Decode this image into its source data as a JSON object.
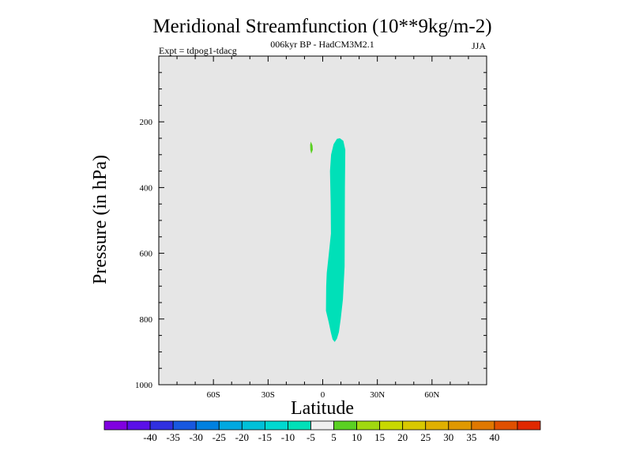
{
  "chart_data": {
    "type": "contour",
    "title": "Meridional Streamfunction (10**9kg/m-2)",
    "subtitle_left": "Expt = tdpog1-tdacg",
    "subtitle_center": "006kyr BP - HadCM3M2.1",
    "subtitle_right": "JJA",
    "xlabel": "Latitude",
    "ylabel": "Pressure (in hPa)",
    "xlim": [
      -90,
      90
    ],
    "ylim": [
      1000,
      0
    ],
    "x_ticks": [
      {
        "value": -60,
        "label": "60S"
      },
      {
        "value": -30,
        "label": "30S"
      },
      {
        "value": 0,
        "label": "0"
      },
      {
        "value": 30,
        "label": "30N"
      },
      {
        "value": 60,
        "label": "60N"
      }
    ],
    "y_ticks": [
      {
        "value": 200,
        "label": "200"
      },
      {
        "value": 400,
        "label": "400"
      },
      {
        "value": 600,
        "label": "600"
      },
      {
        "value": 800,
        "label": "800"
      },
      {
        "value": 1000,
        "label": "1000"
      }
    ],
    "background_color": "#e6e6e6",
    "regions": [
      {
        "name": "negative-cell",
        "color": "#00e0b8",
        "range": "-10 to -5",
        "outline": [
          [
            9.4,
            250
          ],
          [
            11.3,
            258
          ],
          [
            12.4,
            285
          ],
          [
            12.2,
            400
          ],
          [
            12.1,
            520
          ],
          [
            12.0,
            640
          ],
          [
            11.1,
            740
          ],
          [
            9.9,
            800
          ],
          [
            8.9,
            840
          ],
          [
            7.8,
            860
          ],
          [
            6.6,
            870
          ],
          [
            5.4,
            862
          ],
          [
            4.5,
            842
          ],
          [
            3.3,
            810
          ],
          [
            1.8,
            775
          ],
          [
            1.9,
            700
          ],
          [
            2.2,
            660
          ],
          [
            3.4,
            600
          ],
          [
            4.5,
            540
          ],
          [
            4.4,
            450
          ],
          [
            4.0,
            350
          ],
          [
            4.6,
            300
          ],
          [
            6.0,
            268
          ],
          [
            7.8,
            252
          ]
        ]
      },
      {
        "name": "positive-cell",
        "color": "#5ad022",
        "range": "5 to 10",
        "outline": [
          [
            -6.5,
            260
          ],
          [
            -5.6,
            272
          ],
          [
            -5.4,
            285
          ],
          [
            -6.3,
            297
          ],
          [
            -6.8,
            285
          ],
          [
            -6.9,
            270
          ]
        ]
      }
    ],
    "colorbar": {
      "colors": [
        "#8000e0",
        "#5a10e8",
        "#3030e0",
        "#1858e0",
        "#0080e0",
        "#00a8e0",
        "#00c0d8",
        "#00d8d0",
        "#00e0b8",
        "#f0f0f0",
        "#5ad022",
        "#a0d810",
        "#c8d800",
        "#d8c800",
        "#e0b000",
        "#e09800",
        "#e07800",
        "#e05000",
        "#e02800"
      ],
      "labels": [
        "-40",
        "-35",
        "-30",
        "-25",
        "-20",
        "-15",
        "-10",
        "-5",
        "5",
        "10",
        "15",
        "20",
        "25",
        "30",
        "35",
        "40"
      ]
    }
  }
}
